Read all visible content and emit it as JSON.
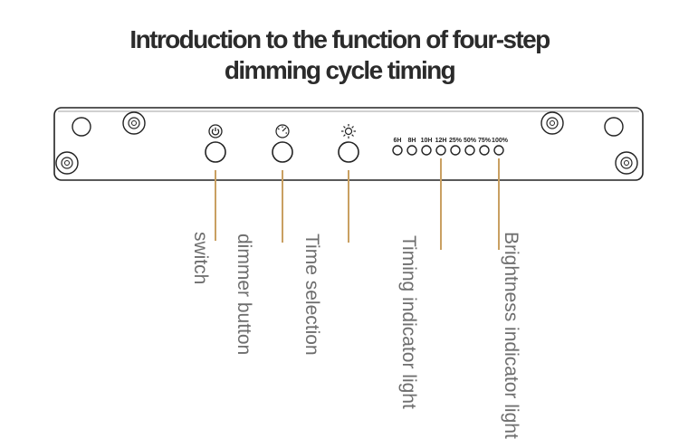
{
  "title": {
    "line1": "Introduction to the function of four-step",
    "line2": "dimming cycle timing"
  },
  "panel": {
    "timing_labels": [
      "6H",
      "8H",
      "10H",
      "12H"
    ],
    "brightness_labels": [
      "25%",
      "50%",
      "75%",
      "100%"
    ],
    "icons": [
      "power-icon",
      "dimmer-icon",
      "sun-icon"
    ]
  },
  "callouts": {
    "switch": "switch",
    "dimmer_button": "dimmer button",
    "time_selection": "Time selection",
    "timing_indicator": "Timing indicator light",
    "brightness_indicator": "Brightness indicator light"
  },
  "colors": {
    "leader_line": "#c9a062",
    "outline": "#222222",
    "label_text": "#6e6e6e"
  }
}
